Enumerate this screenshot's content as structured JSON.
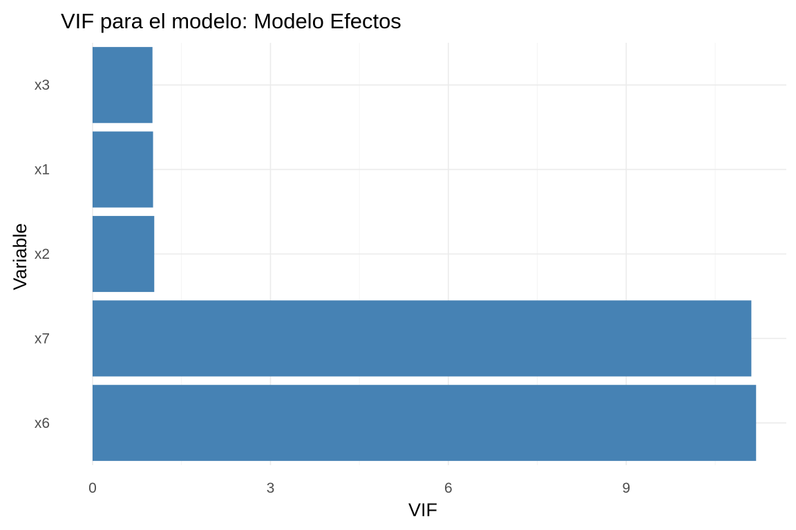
{
  "chart_data": {
    "type": "bar",
    "orientation": "horizontal",
    "title": "VIF para el modelo: Modelo Efectos",
    "xlabel": "VIF",
    "ylabel": "Variable",
    "categories": [
      "x3",
      "x1",
      "x2",
      "x7",
      "x6"
    ],
    "values": [
      1.01,
      1.02,
      1.04,
      11.11,
      11.19
    ],
    "xlim": [
      0,
      11.7
    ],
    "xticks": [
      0,
      3,
      6,
      9
    ],
    "xtick_labels": [
      "0",
      "3",
      "6",
      "9"
    ],
    "bar_color": "#4682b4",
    "grid": true,
    "legend": "none"
  }
}
